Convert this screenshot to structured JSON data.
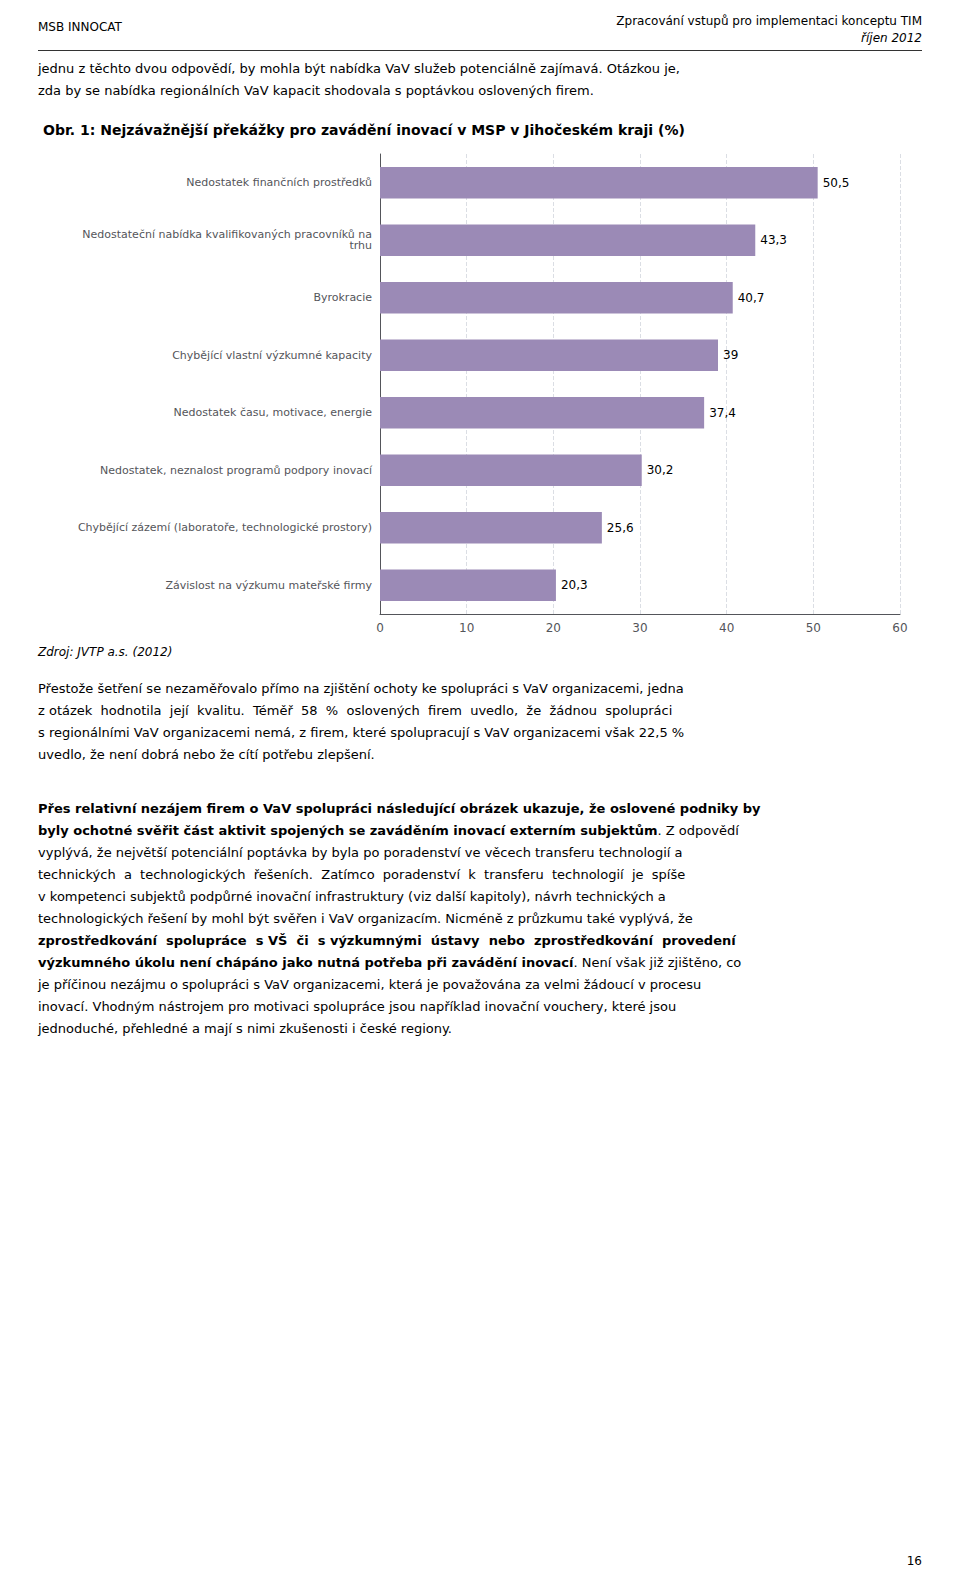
{
  "page": {
    "header_left": "MSB INNOCAT",
    "header_right": [
      "Zpracování vstupů pro implementaci konceptu TIM",
      "říjen 2012"
    ],
    "intro_lines": [
      "jednu z těchto dvou odpovědí, by mohla být nabídka VaV služeb potenciálně zajímavá. Otázkou je,",
      "zda by se nabídka regionálních VaV kapacit shodovala s poptávkou oslovených firem."
    ],
    "after_lines": [
      "Přestože šetření se nezaměřovalo přímo na zjištění ochoty ke spolupráci s VaV organizacemi, jedna",
      "z otázek  hodnotila  její  kvalitu.  Téměř  58  %  oslovených  firem  uvedlo,  že  žádnou  spolupráci",
      "s regionálními VaV organizacemi nemá, z firem, které spolupracují s VaV organizacemi však 22,5 %",
      "uvedlo, že není dobrá nebo že cítí potřebu zlepšení."
    ],
    "mixed_lines": [
      [
        {
          "text": "Přes relativní nezájem firem o VaV spolupráci následující obrázek ukazuje, že oslovené podniky by",
          "bold": true
        }
      ],
      [
        {
          "text": "byly ochotné svěřit část aktivit spojených se zaváděním inovací externím subjektům",
          "bold": true
        },
        {
          "text": ". Z odpovědí",
          "bold": false
        }
      ],
      [
        {
          "text": "vyplývá, že největší potenciální poptávka by byla po poradenství ve věcech transferu technologií a",
          "bold": false
        }
      ],
      [
        {
          "text": "technických  a  technologických  řešeních.  Zatímco  poradenství  k  transferu  technologií  je  spíše",
          "bold": false
        }
      ],
      [
        {
          "text": "v kompetenci subjektů podpůrné inovační infrastruktury (viz další kapitoly), návrh technických a",
          "bold": false
        }
      ],
      [
        {
          "text": "technologických řešení by mohl být svěřen i VaV organizacím. Nicméně z průzkumu také vyplývá, že",
          "bold": false
        }
      ],
      [
        {
          "text": "zprostředkování  spolupráce  s VŠ  či  s výzkumnými  ústavy  nebo  zprostředkování  provedení",
          "bold": true
        }
      ],
      [
        {
          "text": "výzkumného úkolu není chápáno jako nutná potřeba při zavádění inovací",
          "bold": true
        },
        {
          "text": ". Není však již zjištěno, co",
          "bold": false
        }
      ],
      [
        {
          "text": "je příčinou nezájmu o spolupráci s VaV organizacemi, která je považována za velmi žádoucí v procesu",
          "bold": false
        }
      ],
      [
        {
          "text": "inovací. Vhodným nástrojem pro motivaci spolupráce jsou například inovační vouchery, které jsou",
          "bold": false
        }
      ],
      [
        {
          "text": "jednoduché, přehledné a mají s nimi zkušenosti i české regiony.",
          "bold": false
        }
      ]
    ],
    "page_number": "16"
  },
  "chart_data": {
    "type": "bar",
    "orientation": "horizontal",
    "title": "Obr. 1: Nejzávažnější překážky pro zavádění inovací v MSP v Jihočeském kraji (%)",
    "source": "Zdroj: JVTP a.s. (2012)",
    "categories": [
      "Nedostatek finančních prostředků",
      "Nedostateční nabídka kvalifikovaných pracovníků na\ntrhu",
      "Byrokracie",
      "Chybějící vlastní výzkumné kapacity",
      "Nedostatek času, motivace, energie",
      "Nedostatek, neznalost programů podpory inovací",
      "Chybějící zázemí (laboratoře, technologické prostory)",
      "Závislost na výzkumu mateřské firmy"
    ],
    "values": [
      50.5,
      43.3,
      40.7,
      39.0,
      37.4,
      30.2,
      25.6,
      20.3
    ],
    "value_labels": [
      "50,5",
      "43,3",
      "40,7",
      "39",
      "37,4",
      "30,2",
      "25,6",
      "20,3"
    ],
    "data_labels": true,
    "color": "#9b8ab6",
    "xlim": [
      0,
      60
    ],
    "xticks": [
      0,
      10,
      20,
      30,
      40,
      50,
      60
    ],
    "grid": true
  }
}
